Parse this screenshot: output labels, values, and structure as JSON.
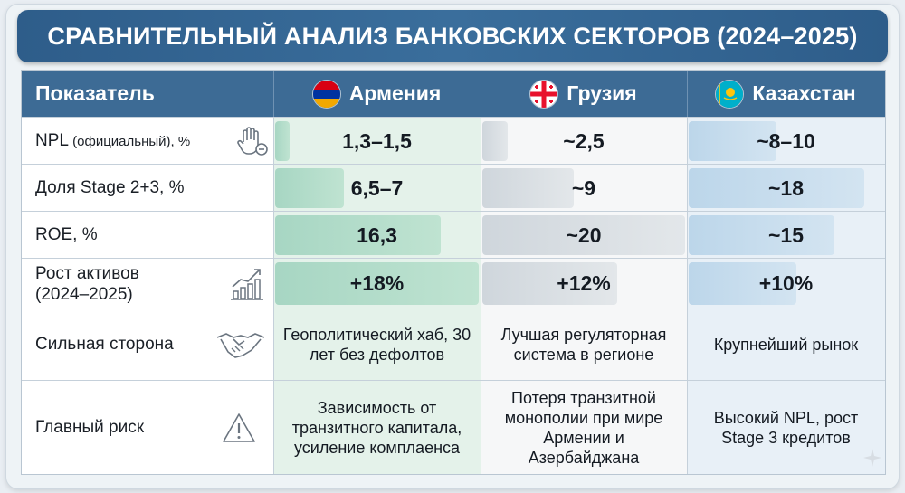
{
  "title": "СРАВНИТЕЛЬНЫЙ АНАЛИЗ БАНКОВСКИХ СЕКТОРОВ (2024–2025)",
  "header": {
    "indicator": "Показатель"
  },
  "countries": [
    {
      "name": "Армения",
      "flag": "armenia-flag-icon"
    },
    {
      "name": "Грузия",
      "flag": "georgia-flag-icon"
    },
    {
      "name": "Казахстан",
      "flag": "kazakhstan-flag-icon"
    }
  ],
  "rows": [
    {
      "label": "NPL",
      "label_note": "(официальный), %",
      "icon": "hand-minus-icon",
      "values": [
        "1,3–1,5",
        "~2,5",
        "~8–10"
      ]
    },
    {
      "label": "Доля Stage 2+3, %",
      "icon": "",
      "values": [
        "6,5–7",
        "~9",
        "~18"
      ]
    },
    {
      "label": "ROE, %",
      "icon": "",
      "values": [
        "16,3",
        "~20",
        "~15"
      ]
    },
    {
      "label": "Рост активов",
      "label_line2": "(2024–2025)",
      "icon": "growth-chart-icon",
      "values": [
        "+18%",
        "+12%",
        "+10%"
      ]
    },
    {
      "label": "Сильная сторона",
      "icon": "handshake-icon",
      "values": [
        "Геополитический хаб, 30 лет без дефолтов",
        "Лучшая регуляторная система в регионе",
        "Крупнейший рынок"
      ]
    },
    {
      "label": "Главный риск",
      "icon": "warning-icon",
      "values": [
        "Зависимость от транзитного капитала, усиление комплаенса",
        "Потеря транзитной монополии при мире Армении и Азербайджана",
        "Высокий NPL, рост Stage 3 кредитов"
      ]
    }
  ],
  "chart_data": {
    "type": "table",
    "title": "СРАВНИТЕЛЬНЫЙ АНАЛИЗ БАНКОВСКИХ СЕКТОРОВ (2024–2025)",
    "columns": [
      "Показатель",
      "Армения",
      "Грузия",
      "Казахстан"
    ],
    "bars": {
      "NPL (официальный), %": [
        1.4,
        2.5,
        9
      ],
      "Доля Stage 2+3, %": [
        6.75,
        9,
        18
      ],
      "ROE, %": [
        16.3,
        20,
        15
      ],
      "Рост активов (2024–2025)": [
        18,
        12,
        10
      ]
    },
    "bar_scale_max": [
      20,
      20,
      20,
      18
    ]
  },
  "colors": {
    "header": "#3d6b95",
    "armenia": "#bfe3d1",
    "georgia": "#e3e7ea",
    "kazakhstan": "#d3e4f1"
  }
}
